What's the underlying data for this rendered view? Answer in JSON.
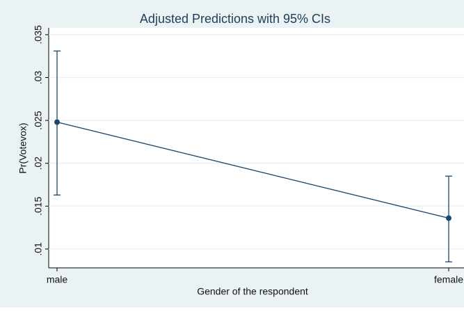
{
  "chart_data": {
    "type": "line",
    "title": "Adjusted Predictions with 95% CIs",
    "x_label": "Gender of the respondent",
    "y_label": "Pr(Votevox)",
    "categories": [
      "male",
      "female"
    ],
    "series": [
      {
        "color": "#1a476f",
        "values": [
          0.0248,
          0.0136
        ],
        "ci_lower": [
          0.0163,
          0.0085
        ],
        "ci_upper": [
          0.0331,
          0.0185
        ]
      }
    ],
    "ylim": [
      0.0078,
      0.0358
    ],
    "yticks": [
      {
        "value": 0.01,
        "label": ".01"
      },
      {
        "value": 0.015,
        "label": ".015"
      },
      {
        "value": 0.02,
        "label": ".02"
      },
      {
        "value": 0.025,
        "label": ".025"
      },
      {
        "value": 0.03,
        "label": ".03"
      },
      {
        "value": 0.035,
        "label": ".035"
      }
    ],
    "grid": true
  }
}
